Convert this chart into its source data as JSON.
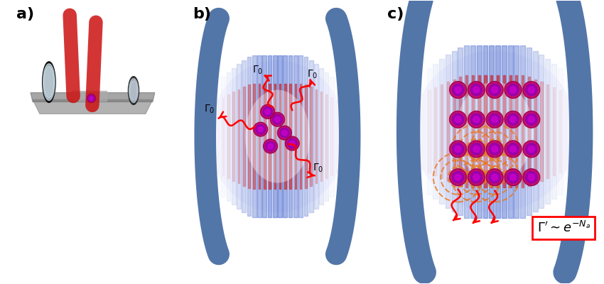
{
  "bg_color": "#ffffff",
  "label_a": "a)",
  "label_b": "b)",
  "label_c": "c)",
  "label_fontsize": 16,
  "formula": "$\\Gamma^{\\prime} \\sim e^{-N_a}$",
  "formula_fontsize": 13,
  "gamma0_fontsize": 10,
  "atom_color_outer": "#c00060",
  "atom_color_mid": "#9900aa",
  "atom_color_inner": "#cc00cc",
  "atom_edge": "#1a0030",
  "mirror_color": "#4a6fa5",
  "fringe_red": "#cc2222",
  "fringe_blue": "#4466cc",
  "arrow_color": "#cc0000",
  "orange_ring": "#e87820"
}
